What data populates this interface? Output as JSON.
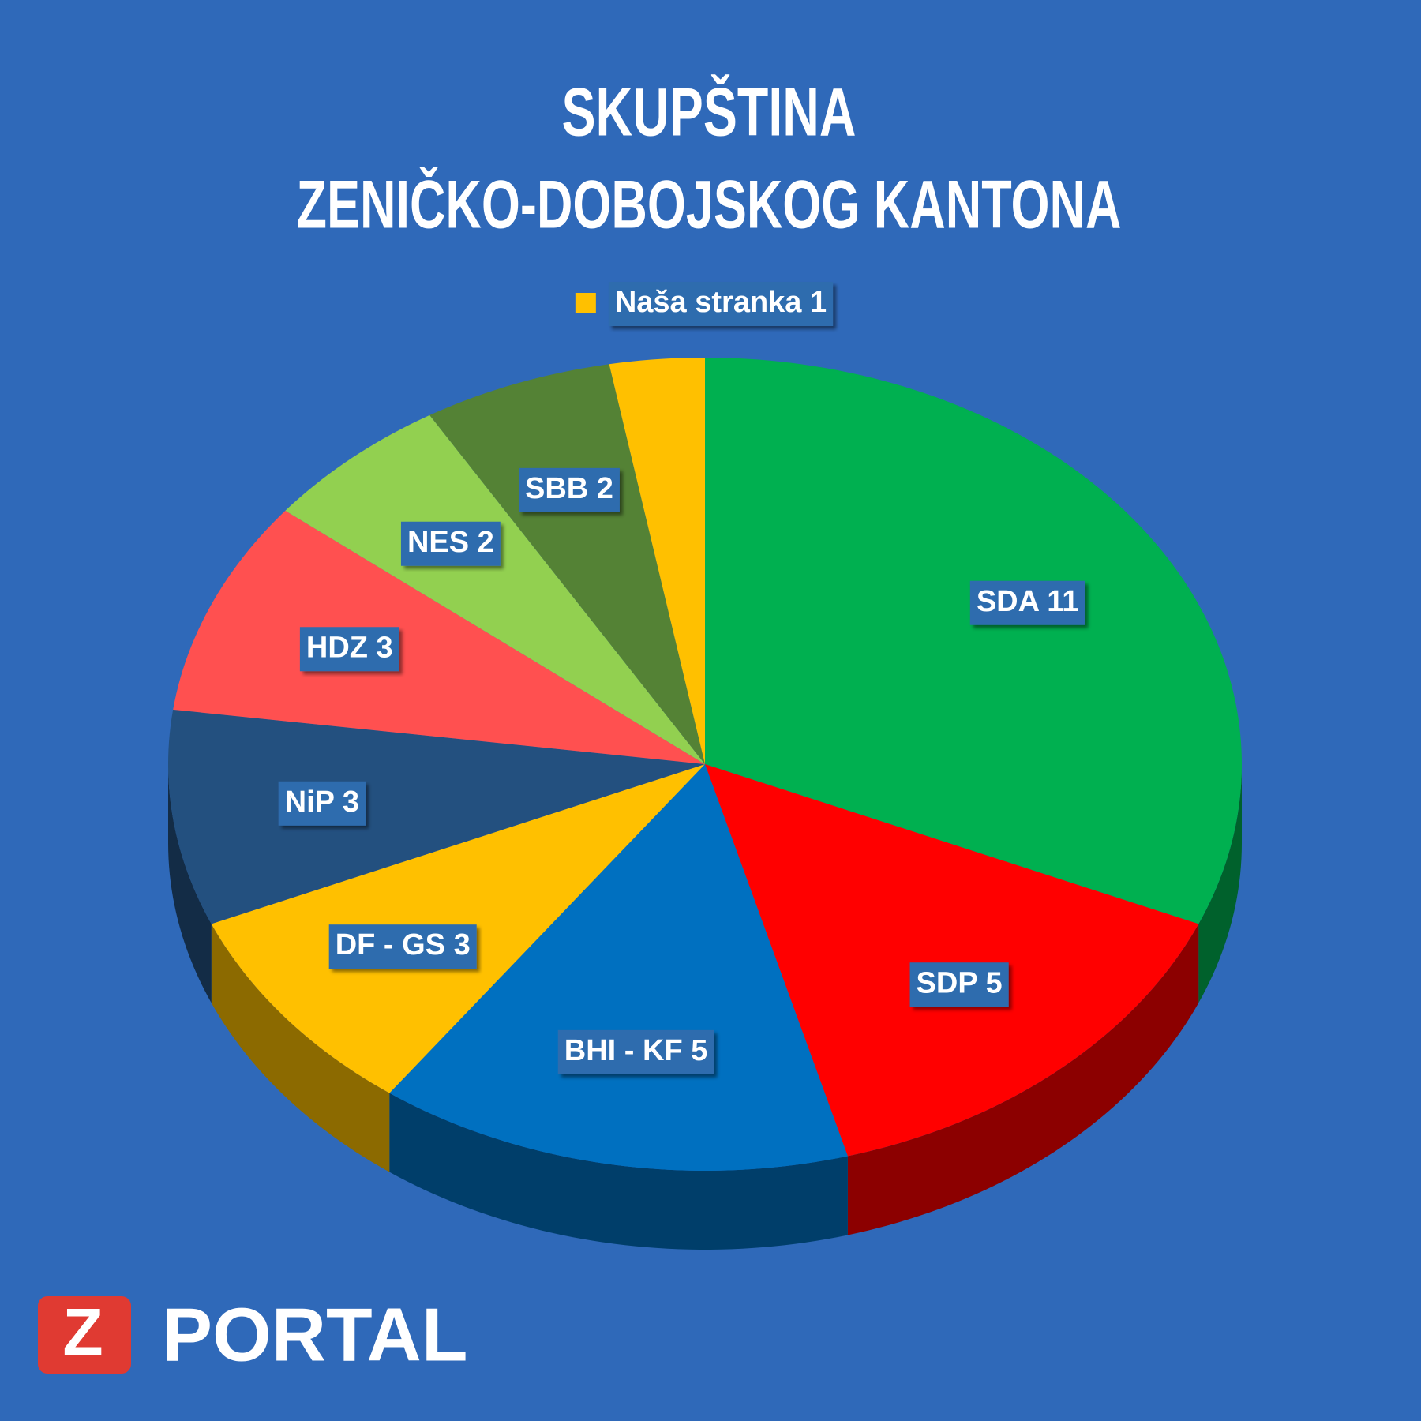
{
  "chart_data": {
    "type": "pie",
    "title": [
      "SKUPŠTINA",
      "ZENIČKO-DOBOJSKOG KANTONA"
    ],
    "values": [
      11,
      5,
      5,
      3,
      3,
      3,
      2,
      2,
      1
    ],
    "value_labels": [
      "SDA 11",
      "SDP 5",
      "BHI - KF 5",
      "DF - GS 3",
      "NiP 3",
      "HDZ 3",
      "NES 2",
      "SBB 2",
      "Naša stranka 1"
    ],
    "colors": [
      "#00b050",
      "#ff0000",
      "#0070c0",
      "#ffc000",
      "#23507f",
      "#ff5050",
      "#92d050",
      "#548235",
      "#ffc000"
    ]
  },
  "logo": {
    "mark": "Z",
    "text": "PORTAL"
  }
}
